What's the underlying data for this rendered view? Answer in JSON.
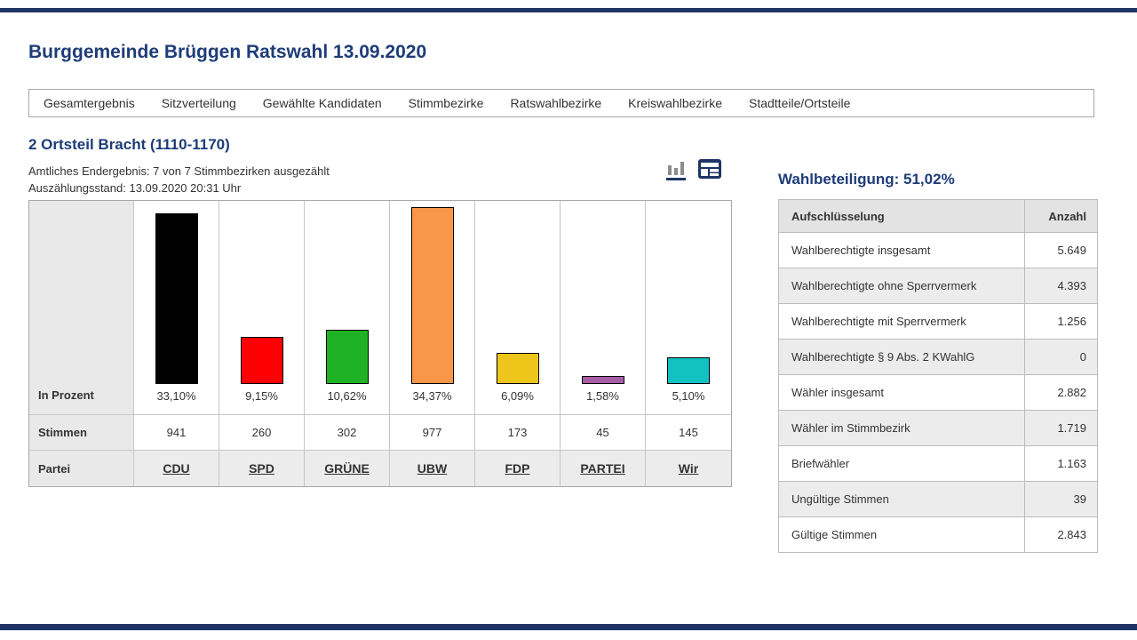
{
  "page": {
    "title": "Burggemeinde Brüggen Ratswahl 13.09.2020"
  },
  "nav": {
    "items": [
      "Gesamtergebnis",
      "Sitzverteilung",
      "Gewählte Kandidaten",
      "Stimmbezirke",
      "Ratswahlbezirke",
      "Kreiswahlbezirke",
      "Stadtteile/Ortsteile"
    ]
  },
  "section": {
    "heading": "2 Ortsteil Bracht (1110-1170)",
    "status_line1": "Amtliches Endergebnis: 7 von 7 Stimmbezirken ausgezählt",
    "status_line2": "Auszählungsstand: 13.09.2020 20:31 Uhr",
    "view_icons": [
      "bar-chart-view",
      "table-view"
    ],
    "active_view": "bar-chart-view"
  },
  "chart_data": {
    "type": "bar",
    "title": "",
    "categories": [
      "CDU",
      "SPD",
      "GRÜNE",
      "UBW",
      "FDP",
      "PARTEI",
      "Wir"
    ],
    "series": [
      {
        "name": "In Prozent",
        "values": [
          33.1,
          9.15,
          10.62,
          34.37,
          6.09,
          1.58,
          5.1
        ]
      },
      {
        "name": "Stimmen",
        "values": [
          941,
          260,
          302,
          977,
          173,
          45,
          145
        ]
      }
    ],
    "percent_labels": [
      "33,10%",
      "9,15%",
      "10,62%",
      "34,37%",
      "6,09%",
      "1,58%",
      "5,10%"
    ],
    "votes_labels": [
      "941",
      "260",
      "302",
      "977",
      "173",
      "45",
      "145"
    ],
    "bar_colors": [
      "#000000",
      "#ff0000",
      "#1eb224",
      "#fa9647",
      "#eec51a",
      "#a55ca5",
      "#12c2c2"
    ],
    "row_labels": {
      "percent": "In Prozent",
      "votes": "Stimmen",
      "party": "Partei"
    },
    "ylim": [
      0,
      34.37
    ],
    "grid": false,
    "legend": "none"
  },
  "turnout": {
    "heading": "Wahlbeteiligung: 51,02%",
    "table": {
      "col1": "Aufschlüsselung",
      "col2": "Anzahl",
      "rows": [
        {
          "label": "Wahlberechtigte insgesamt",
          "value": "5.649"
        },
        {
          "label": "Wahlberechtigte ohne Sperrvermerk",
          "value": "4.393"
        },
        {
          "label": "Wahlberechtigte mit Sperrvermerk",
          "value": "1.256"
        },
        {
          "label": "Wahlberechtigte § 9 Abs. 2 KWahlG",
          "value": "0"
        },
        {
          "label": "Wähler insgesamt",
          "value": "2.882"
        },
        {
          "label": "Wähler im Stimmbezirk",
          "value": "1.719"
        },
        {
          "label": "Briefwähler",
          "value": "1.163"
        },
        {
          "label": "Ungültige Stimmen",
          "value": "39"
        },
        {
          "label": "Gültige Stimmen",
          "value": "2.843"
        }
      ]
    }
  },
  "colors": {
    "accent_blue": "#1e3c78",
    "rule_navy": "#1e3464",
    "icon_gray": "#8c8c8c"
  }
}
